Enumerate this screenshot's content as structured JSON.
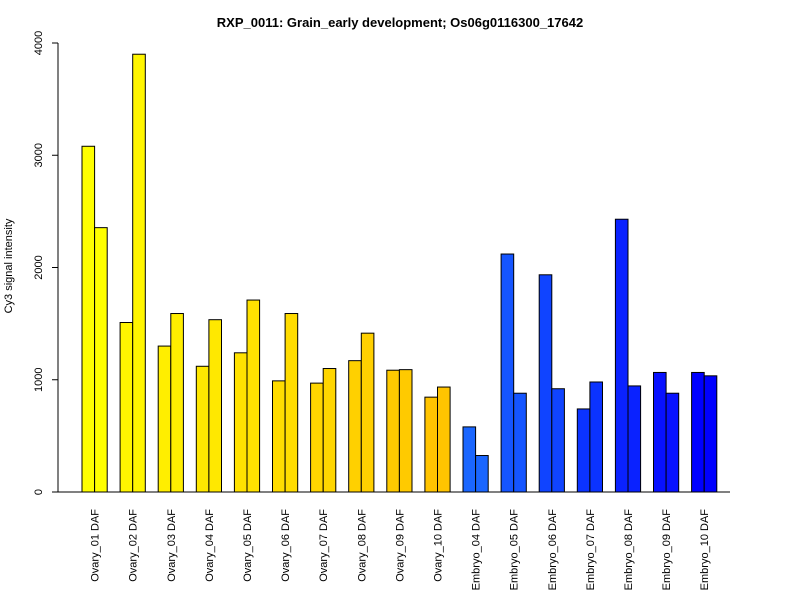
{
  "chart_data": {
    "type": "bar",
    "title": "RXP_0011: Grain_early development; Os06g0116300_17642",
    "xlabel": "",
    "ylabel": "Cy3 signal intensity",
    "ylim": [
      0,
      4000
    ],
    "yticks": [
      0,
      1000,
      2000,
      3000,
      4000
    ],
    "ytick_labels": [
      "0",
      "1000",
      "2000",
      "3000",
      "4000"
    ],
    "grid": false,
    "legend": "none",
    "categories": [
      "Ovary_01 DAF",
      "Ovary_02 DAF",
      "Ovary_03 DAF",
      "Ovary_04 DAF",
      "Ovary_05 DAF",
      "Ovary_06 DAF",
      "Ovary_07 DAF",
      "Ovary_08 DAF",
      "Ovary_09 DAF",
      "Ovary_10 DAF",
      "Embryo_04 DAF",
      "Embryo_05 DAF",
      "Embryo_06 DAF",
      "Embryo_07 DAF",
      "Embryo_08 DAF",
      "Embryo_09 DAF",
      "Embryo_10 DAF"
    ],
    "colors": [
      "#ffff00",
      "#fff500",
      "#ffee00",
      "#ffe800",
      "#ffe200",
      "#ffdc00",
      "#ffd600",
      "#ffd000",
      "#ffca00",
      "#ffc400",
      "#1a66ff",
      "#1555ff",
      "#1044ff",
      "#0b33ff",
      "#0a22ff",
      "#0811ff",
      "#0000ff"
    ],
    "series": [
      {
        "values": [
          3080,
          1510,
          1300,
          1120,
          1240,
          990,
          970,
          1170,
          1085,
          845,
          580,
          2120,
          1935,
          740,
          2430,
          1065,
          1065
        ]
      },
      {
        "values": [
          2355,
          3900,
          1590,
          1535,
          1710,
          1590,
          1100,
          1415,
          1090,
          935,
          325,
          880,
          920,
          980,
          945,
          880,
          1035
        ]
      }
    ]
  }
}
